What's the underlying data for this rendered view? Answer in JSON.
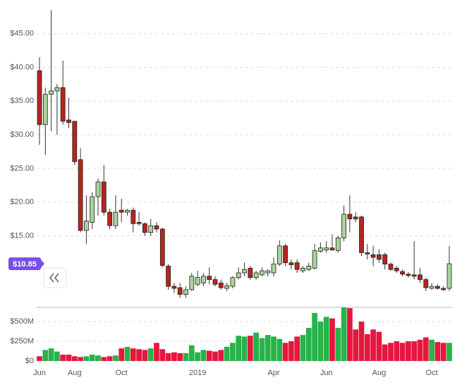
{
  "chart_data": {
    "type": "candlestick",
    "categories": [
      "Jun",
      null,
      null,
      null,
      null,
      null,
      "Aug",
      null,
      null,
      null,
      null,
      null,
      null,
      null,
      "Oct",
      null,
      null,
      null,
      null,
      null,
      null,
      null,
      null,
      null,
      null,
      null,
      null,
      "2019",
      null,
      null,
      null,
      null,
      null,
      null,
      null,
      null,
      null,
      null,
      null,
      null,
      "Apr",
      null,
      null,
      null,
      null,
      null,
      null,
      null,
      null,
      "Jun",
      null,
      null,
      null,
      null,
      null,
      null,
      null,
      null,
      "Aug",
      null,
      null,
      null,
      null,
      null,
      null,
      null,
      null,
      "Oct",
      null,
      null,
      null
    ],
    "open": [
      39.5,
      31.5,
      36,
      36.5,
      37,
      32.2,
      32,
      26.3,
      15.8,
      17,
      20.8,
      23,
      18.5,
      16.5,
      18.8,
      18.5,
      18.8,
      17,
      16.8,
      15.5,
      16.5,
      16,
      10.5,
      7.5,
      7.3,
      6.3,
      7,
      7.8,
      8,
      9,
      8.5,
      8,
      7.2,
      7.5,
      8.8,
      9.5,
      10.2,
      8.8,
      9.2,
      9.5,
      9.5,
      10.8,
      13.5,
      11,
      11,
      9.8,
      10,
      10.2,
      12.7,
      12.9,
      13.2,
      12.8,
      14.7,
      18.2,
      17.8,
      17.8,
      12.5,
      12.2,
      12.2,
      12.2,
      10.8,
      10.2,
      9.7,
      9.3,
      9.2,
      9.2,
      8.5,
      7.2,
      7.5,
      7.2,
      7.2
    ],
    "high": [
      41.5,
      37,
      48.5,
      37.5,
      41,
      35.5,
      32,
      28,
      21,
      21.5,
      23.5,
      25.5,
      19,
      21,
      20.5,
      19,
      19.2,
      18.5,
      17,
      17.5,
      17,
      16.2,
      10.8,
      8,
      8,
      7.5,
      9.5,
      9.8,
      9.5,
      10.3,
      9,
      8.5,
      8,
      9,
      10.3,
      11,
      10.5,
      9.8,
      10.3,
      10,
      11.8,
      14.3,
      13.8,
      11.5,
      11.5,
      10.5,
      11,
      13.8,
      14,
      14.2,
      15.2,
      15,
      19.5,
      21,
      18.5,
      18,
      13.8,
      13.5,
      13,
      12.5,
      11,
      10.5,
      10,
      9.6,
      14.2,
      10.2,
      8.8,
      8,
      7.8,
      7.5,
      13.5
    ],
    "low": [
      28.5,
      27,
      30.5,
      30,
      31.5,
      31,
      25.5,
      15.5,
      13.8,
      16,
      18,
      18,
      16,
      16,
      17,
      18,
      15.5,
      16.5,
      15,
      15,
      15.5,
      10.3,
      7,
      6.5,
      5.8,
      5.8,
      6.8,
      7.5,
      7.5,
      7.8,
      7.5,
      7,
      6.8,
      7.2,
      8.5,
      9,
      8.5,
      8.5,
      9,
      9,
      9,
      10.5,
      10.5,
      10,
      9.5,
      9.5,
      9.8,
      10,
      12.5,
      12.5,
      12.8,
      12.5,
      14.2,
      15.5,
      17,
      12,
      11.5,
      10.5,
      11,
      10,
      9.8,
      9.5,
      9,
      8.8,
      8.5,
      8,
      6.8,
      7,
      7,
      6.8,
      6.8
    ],
    "close": [
      31.5,
      36,
      36.5,
      37,
      32,
      31.8,
      26,
      15.8,
      17.2,
      20.8,
      23,
      18.5,
      16.5,
      18.5,
      18.5,
      18.8,
      16.8,
      16.8,
      15.5,
      16.5,
      16,
      10.6,
      7.5,
      7.2,
      6.3,
      7,
      9,
      8.8,
      9,
      8.5,
      7.8,
      7.3,
      7.6,
      8.8,
      9.5,
      10,
      8.8,
      9.5,
      9.8,
      9.8,
      10.8,
      13.5,
      11,
      10.7,
      10,
      10.2,
      10.5,
      12.8,
      13.2,
      13.2,
      12.9,
      14.7,
      18.2,
      17.5,
      17.5,
      12.5,
      12.3,
      11.8,
      11.5,
      10.8,
      10,
      9.8,
      9.3,
      9.1,
      9,
      8.5,
      7.3,
      7.5,
      7.2,
      7,
      10.85
    ],
    "volume": [
      60000000.0,
      140000000.0,
      160000000.0,
      120000000.0,
      80000000.0,
      80000000.0,
      60000000.0,
      50000000.0,
      60000000.0,
      80000000.0,
      70000000.0,
      50000000.0,
      60000000.0,
      70000000.0,
      160000000.0,
      180000000.0,
      160000000.0,
      150000000.0,
      140000000.0,
      160000000.0,
      230000000.0,
      150000000.0,
      100000000.0,
      110000000.0,
      100000000.0,
      100000000.0,
      200000000.0,
      110000000.0,
      140000000.0,
      130000000.0,
      120000000.0,
      140000000.0,
      180000000.0,
      230000000.0,
      320000000.0,
      310000000.0,
      320000000.0,
      360000000.0,
      290000000.0,
      330000000.0,
      310000000.0,
      280000000.0,
      230000000.0,
      250000000.0,
      310000000.0,
      330000000.0,
      420000000.0,
      610000000.0,
      500000000.0,
      560000000.0,
      540000000.0,
      420000000.0,
      680000000.0,
      670000000.0,
      400000000.0,
      500000000.0,
      340000000.0,
      400000000.0,
      370000000.0,
      210000000.0,
      230000000.0,
      250000000.0,
      230000000.0,
      250000000.0,
      250000000.0,
      270000000.0,
      300000000.0,
      270000000.0,
      240000000.0,
      230000000.0,
      230000000.0
    ],
    "ylim": [
      5,
      50
    ],
    "yticks": [
      {
        "value": 15,
        "label": "$15.00"
      },
      {
        "value": 20,
        "label": "$20.00"
      },
      {
        "value": 25,
        "label": "$25.00"
      },
      {
        "value": 30,
        "label": "$30.00"
      },
      {
        "value": 35,
        "label": "$35.00"
      },
      {
        "value": 40,
        "label": "$40.00"
      },
      {
        "value": 45,
        "label": "$45.00"
      }
    ],
    "volume_ylim": [
      0,
      680000000.0
    ],
    "volume_ticks": [
      {
        "value": 0,
        "label": "$0"
      },
      {
        "value": 250000000,
        "label": "$250M"
      },
      {
        "value": 500000000,
        "label": "$500M"
      }
    ],
    "last_price_label": "$10.85",
    "up_color": "#a9d39a",
    "down_color": "#b3261e",
    "volume_up_color": "#27b34a",
    "volume_down_color": "#e5173f",
    "badge_color": "#7a4fe6",
    "grid": true
  }
}
